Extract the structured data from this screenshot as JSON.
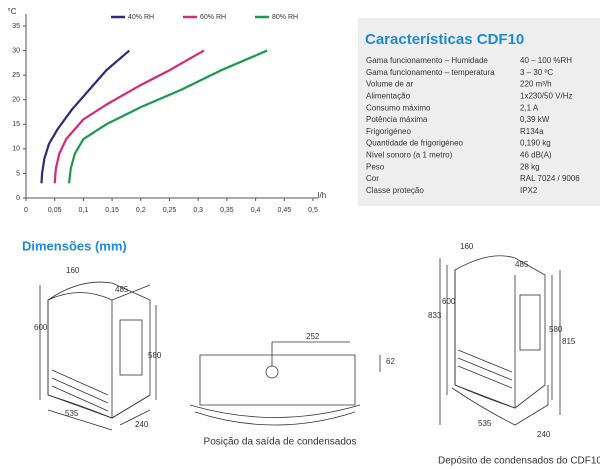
{
  "chart_data": {
    "type": "line",
    "y_label": "°C",
    "x_label": "l/h",
    "xlim": [
      0,
      0.5
    ],
    "xticks": [
      0,
      {
        "value": 0.05,
        "label": "0,05"
      },
      {
        "value": 0.1,
        "label": "0,1"
      },
      {
        "value": 0.15,
        "label": "0,15"
      },
      {
        "value": 0.2,
        "label": "0,2"
      },
      {
        "value": 0.25,
        "label": "0,25"
      },
      {
        "value": 0.3,
        "label": "0,3"
      },
      {
        "value": 0.35,
        "label": "0,35"
      },
      {
        "value": 0.4,
        "label": "0,4"
      },
      {
        "value": 0.45,
        "label": "0,45"
      },
      {
        "value": 0.5,
        "label": "0,5"
      }
    ],
    "ylim": [
      0,
      35
    ],
    "yticks": [
      0,
      5,
      10,
      15,
      20,
      25,
      30,
      35
    ],
    "series": [
      {
        "name": "40% RH",
        "color": "#2e2a7a",
        "x": [
          0.027,
          0.028,
          0.032,
          0.04,
          0.055,
          0.08,
          0.11,
          0.14,
          0.18
        ],
        "values": [
          3,
          5,
          8,
          11,
          14,
          18,
          22,
          26,
          30
        ]
      },
      {
        "name": "60% RH",
        "color": "#d6287a",
        "x": [
          0.05,
          0.052,
          0.058,
          0.07,
          0.1,
          0.14,
          0.2,
          0.25,
          0.31
        ],
        "values": [
          3,
          6,
          9,
          12,
          16,
          19,
          23,
          26,
          30
        ]
      },
      {
        "name": "80% RH",
        "color": "#1a9a4a",
        "x": [
          0.075,
          0.078,
          0.085,
          0.1,
          0.14,
          0.2,
          0.27,
          0.34,
          0.42
        ],
        "values": [
          3,
          6,
          9,
          12,
          15,
          18.5,
          22,
          26,
          30
        ]
      }
    ]
  },
  "specs": {
    "title": "Características CDF10",
    "rows": [
      [
        "Gama funcionamento – Humidade",
        "40 – 100 %RH"
      ],
      [
        "Gama funcionamento – temperatura",
        "3 – 30 ºC"
      ],
      [
        "Volume de ar",
        "220 m³/h"
      ],
      [
        "Alimentação",
        "1x230/50 V/Hz"
      ],
      [
        "Consumo máximo",
        "2,1 A"
      ],
      [
        "Potência máxima",
        "0,39 kW"
      ],
      [
        "Frigorigéneo",
        "R134a"
      ],
      [
        "Quantidade de frigorigéneo",
        "0,190 kg"
      ],
      [
        "Nível sonoro (a 1 metro)",
        "46 dB(A)"
      ],
      [
        "Peso",
        "28 kg"
      ],
      [
        "Cor",
        "RAL 7024 / 9006"
      ],
      [
        "Classe proteção",
        "IPX2"
      ]
    ]
  },
  "dimensions": {
    "title": "Dimensões (mm)",
    "left": [
      "160",
      "485",
      "600",
      "580",
      "535",
      "240"
    ],
    "middle": [
      "252",
      "62"
    ],
    "middle_caption": "Posição da saída de condensados",
    "right": [
      "160",
      "485",
      "600",
      "833",
      "580",
      "815",
      "535",
      "240"
    ],
    "right_caption": "Depósito de condensados do CDF10"
  }
}
